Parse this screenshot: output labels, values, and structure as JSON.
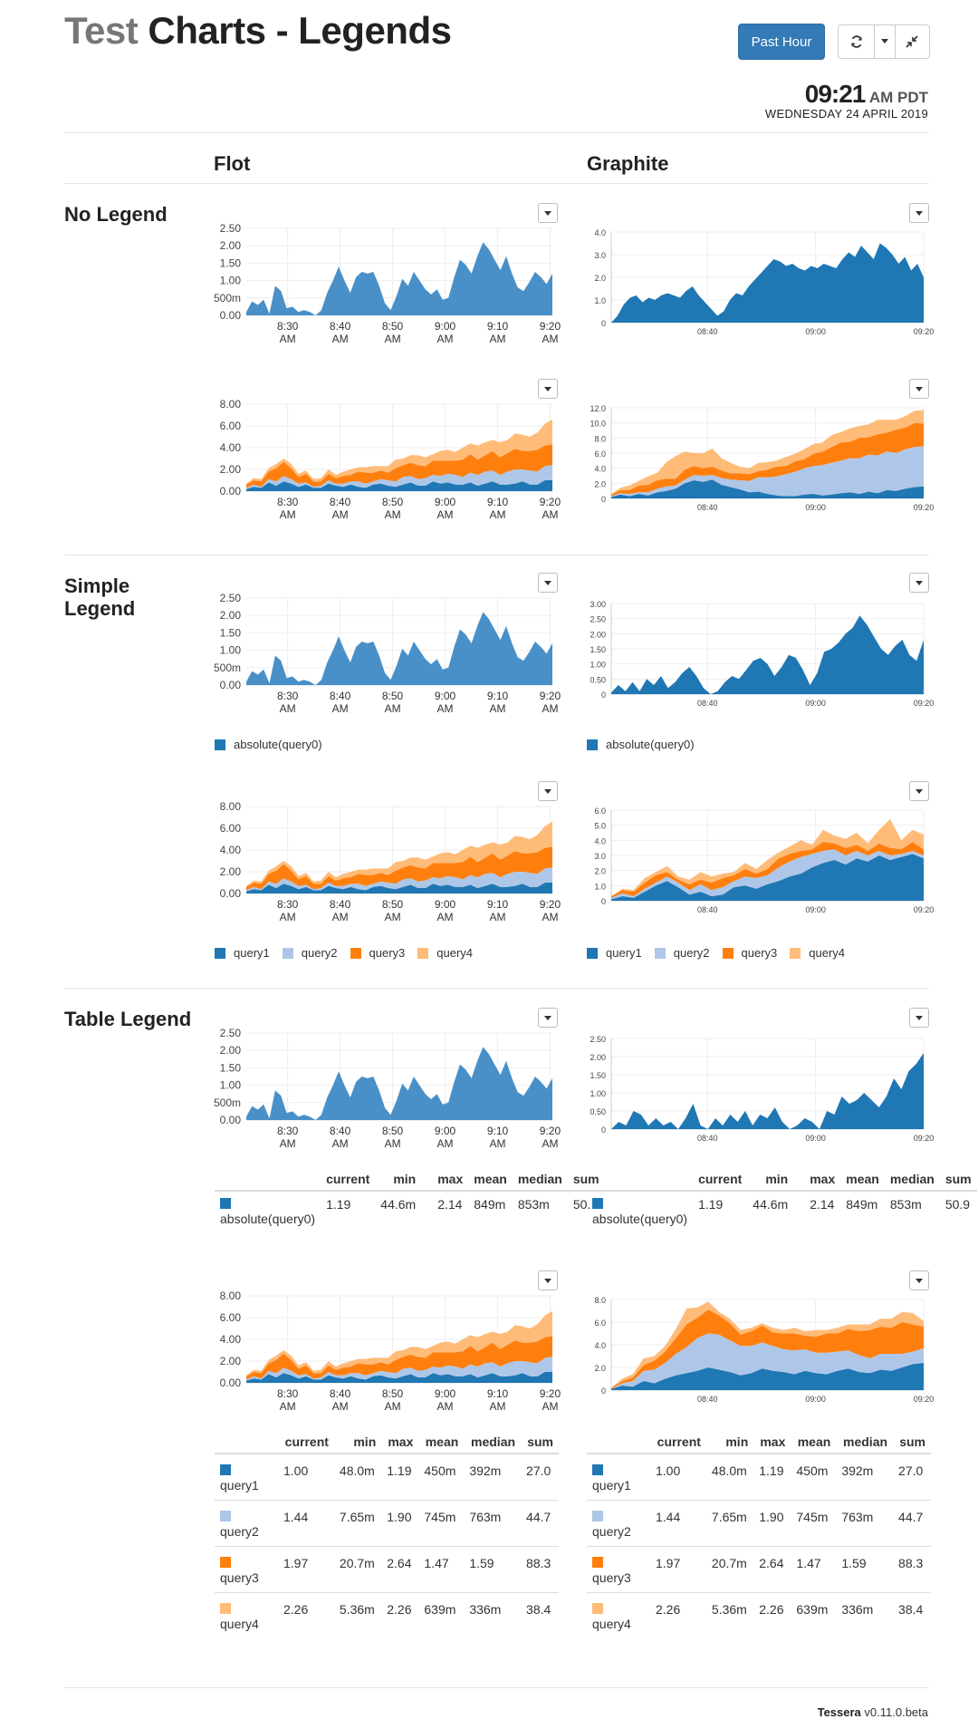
{
  "header": {
    "title_part1": "Test",
    "title_part2": "Charts - Legends",
    "time_range_button": "Past Hour",
    "refresh_icon": "refresh-icon",
    "caret_icon": "caret-down-icon",
    "exit_fullscreen_icon": "compress-icon",
    "time": "09:21",
    "ampm": "AM PDT",
    "date": "WEDNESDAY 24 APRIL 2019"
  },
  "columns": {
    "flot": "Flot",
    "graphite": "Graphite"
  },
  "sections": {
    "no_legend": "No Legend",
    "simple_legend_l1": "Simple",
    "simple_legend_l2": "Legend",
    "table_legend": "Table Legend"
  },
  "colors": {
    "flot_single": "#4a90c8",
    "query1": "#1f77b4",
    "query2": "#aec7e8",
    "query3": "#ff7f0e",
    "query4": "#ffbb78"
  },
  "flot_axis": {
    "x_ticks": [
      {
        "t": "8:30",
        "s": "AM"
      },
      {
        "t": "8:40",
        "s": "AM"
      },
      {
        "t": "8:50",
        "s": "AM"
      },
      {
        "t": "9:00",
        "s": "AM"
      },
      {
        "t": "9:10",
        "s": "AM"
      },
      {
        "t": "9:20",
        "s": "AM"
      }
    ],
    "y_single": [
      "0.00",
      "500m",
      "1.00",
      "1.50",
      "2.00",
      "2.50"
    ],
    "y_stack": [
      "0.00",
      "2.00",
      "4.00",
      "6.00",
      "8.00"
    ]
  },
  "graphite_axis": {
    "x_ticks": [
      "08:40",
      "09:00",
      "09:20"
    ]
  },
  "chart_data": [
    {
      "id": "flot-single",
      "type": "area",
      "series": [
        {
          "name": "absolute(query0)",
          "values": [
            0.1,
            0.4,
            0.3,
            0.45,
            0.05,
            0.85,
            0.7,
            0.2,
            0.25,
            0.1,
            0.15,
            0.1,
            0.0,
            0.15,
            0.65,
            1.0,
            1.4,
            1.0,
            0.65,
            1.1,
            1.25,
            1.2,
            1.25,
            0.85,
            0.35,
            0.15,
            0.55,
            1.05,
            0.85,
            1.25,
            1.0,
            0.75,
            0.6,
            0.75,
            0.45,
            0.5,
            1.1,
            1.6,
            1.45,
            1.2,
            1.7,
            2.1,
            1.9,
            1.6,
            1.3,
            1.7,
            1.2,
            0.8,
            0.7,
            0.95,
            1.25,
            1.1,
            0.9,
            1.2
          ]
        }
      ]
    },
    {
      "id": "flot-stack",
      "type": "area",
      "series": [
        {
          "name": "query1",
          "values": [
            0.2,
            0.4,
            0.3,
            0.8,
            0.5,
            0.9,
            0.7,
            0.4,
            0.6,
            0.3,
            0.3,
            0.7,
            0.5,
            0.4,
            0.6,
            0.4,
            0.3,
            0.6,
            0.7,
            0.5,
            0.4,
            0.6,
            0.8,
            0.5,
            0.5,
            0.9,
            0.7,
            0.8,
            0.6,
            0.6,
            0.8,
            0.5,
            0.7,
            0.9,
            0.6,
            0.6,
            0.7,
            0.9,
            0.6,
            0.6,
            1.0,
            1.0
          ]
        },
        {
          "name": "query2",
          "values": [
            0.1,
            0.2,
            0.1,
            0.3,
            0.4,
            0.5,
            0.4,
            0.3,
            0.2,
            0.1,
            0.2,
            0.3,
            0.2,
            0.3,
            0.3,
            0.5,
            0.4,
            0.3,
            0.4,
            0.5,
            0.5,
            0.7,
            0.6,
            0.6,
            0.7,
            0.6,
            0.7,
            0.8,
            0.9,
            0.7,
            0.9,
            1.0,
            1.1,
            1.0,
            0.9,
            1.2,
            1.3,
            1.1,
            1.3,
            1.2,
            1.3,
            1.4
          ]
        },
        {
          "name": "query3",
          "values": [
            0.3,
            0.4,
            0.5,
            0.7,
            1.2,
            1.3,
            1.0,
            0.6,
            0.8,
            0.5,
            0.4,
            0.6,
            0.5,
            0.7,
            0.6,
            0.9,
            1.0,
            0.8,
            0.8,
            0.7,
            1.2,
            1.1,
            1.2,
            1.3,
            1.1,
            1.3,
            1.4,
            1.2,
            1.3,
            1.6,
            1.7,
            1.4,
            1.5,
            1.8,
            1.6,
            1.7,
            1.9,
            1.7,
            1.8,
            2.0,
            1.9,
            1.9
          ]
        },
        {
          "name": "query4",
          "values": [
            0.1,
            0.2,
            0.2,
            0.3,
            0.4,
            0.3,
            0.4,
            0.3,
            0.3,
            0.2,
            0.3,
            0.4,
            0.3,
            0.4,
            0.5,
            0.4,
            0.5,
            0.6,
            0.4,
            0.6,
            0.8,
            0.6,
            0.7,
            0.9,
            0.8,
            0.6,
            0.9,
            1.0,
            0.8,
            1.1,
            1.0,
            1.3,
            1.2,
            1.0,
            1.4,
            1.2,
            1.4,
            1.5,
            1.3,
            1.6,
            2.0,
            2.3
          ]
        }
      ]
    },
    {
      "id": "graphite-nolegend-single",
      "type": "area",
      "ylim": [
        0,
        4
      ],
      "series": [
        {
          "name": "absolute(query0)",
          "values": [
            0.0,
            0.3,
            0.8,
            1.1,
            1.2,
            0.9,
            1.1,
            1.0,
            1.2,
            1.3,
            1.2,
            1.1,
            1.4,
            1.6,
            1.2,
            0.9,
            0.6,
            0.3,
            0.5,
            1.0,
            1.3,
            1.2,
            1.6,
            1.9,
            2.2,
            2.5,
            2.8,
            2.7,
            2.5,
            2.6,
            2.4,
            2.3,
            2.5,
            2.4,
            2.6,
            2.5,
            2.4,
            2.8,
            3.1,
            2.9,
            3.4,
            3.1,
            2.8,
            3.5,
            3.3,
            3.0,
            2.6,
            2.9,
            2.3,
            2.6,
            2.0
          ]
        }
      ]
    },
    {
      "id": "graphite-nolegend-stack",
      "type": "area",
      "ylim": [
        0,
        12
      ],
      "series": [
        {
          "name": "query1",
          "values": [
            0.2,
            0.5,
            0.3,
            0.6,
            0.4,
            0.8,
            1.0,
            1.3,
            2.0,
            2.4,
            2.2,
            2.5,
            1.8,
            1.5,
            1.2,
            0.8,
            0.9,
            0.6,
            0.4,
            0.3,
            0.3,
            0.5,
            0.6,
            0.4,
            0.5,
            0.7,
            0.8,
            0.6,
            0.9,
            0.7,
            1.1,
            1.0,
            1.3,
            1.5,
            1.6
          ]
        },
        {
          "name": "query2",
          "values": [
            0.1,
            0.2,
            0.3,
            0.2,
            0.4,
            0.5,
            0.6,
            0.4,
            0.5,
            0.7,
            0.8,
            0.6,
            0.9,
            1.0,
            1.2,
            1.5,
            1.9,
            2.2,
            2.5,
            2.9,
            3.2,
            3.5,
            3.7,
            4.0,
            4.2,
            4.3,
            4.5,
            4.7,
            4.9,
            5.0,
            5.1,
            5.0,
            5.2,
            5.3,
            5.3
          ]
        },
        {
          "name": "query3",
          "values": [
            0.2,
            0.4,
            0.5,
            0.9,
            1.0,
            1.1,
            1.0,
            0.9,
            1.3,
            1.2,
            1.0,
            1.1,
            1.0,
            0.8,
            0.9,
            0.9,
            0.8,
            1.0,
            1.3,
            1.1,
            1.4,
            1.2,
            1.6,
            1.8,
            2.1,
            2.4,
            2.2,
            2.7,
            2.3,
            2.8,
            2.5,
            3.1,
            2.9,
            3.2,
            3.0
          ]
        },
        {
          "name": "query4",
          "values": [
            0.1,
            0.3,
            0.6,
            0.6,
            1.1,
            1.0,
            2.2,
            3.0,
            2.4,
            1.7,
            2.0,
            2.4,
            1.6,
            1.4,
            0.9,
            0.8,
            1.1,
            1.0,
            0.8,
            1.2,
            1.0,
            1.3,
            1.3,
            1.2,
            1.6,
            1.4,
            1.8,
            1.6,
            1.7,
            1.9,
            1.7,
            1.3,
            1.5,
            1.6,
            1.8
          ]
        }
      ]
    },
    {
      "id": "graphite-simple-single",
      "type": "area",
      "ylim": [
        0,
        3
      ],
      "series": [
        {
          "name": "absolute(query0)",
          "values": [
            0.05,
            0.3,
            0.1,
            0.4,
            0.1,
            0.5,
            0.3,
            0.6,
            0.2,
            0.4,
            0.7,
            0.9,
            0.6,
            0.2,
            0.0,
            0.1,
            0.4,
            0.6,
            0.5,
            0.8,
            1.1,
            1.2,
            1.0,
            0.6,
            0.9,
            1.3,
            1.2,
            0.8,
            0.3,
            0.7,
            1.4,
            1.5,
            1.7,
            2.0,
            2.2,
            2.6,
            2.3,
            1.9,
            1.5,
            1.3,
            1.6,
            1.8,
            1.3,
            1.1,
            1.8
          ]
        }
      ]
    },
    {
      "id": "graphite-simple-stack",
      "type": "area",
      "ylim": [
        0,
        6
      ],
      "series": [
        {
          "name": "query1",
          "values": [
            0.1,
            0.3,
            0.2,
            0.6,
            1.0,
            1.3,
            0.9,
            0.4,
            0.6,
            0.3,
            0.4,
            0.9,
            1.0,
            0.8,
            1.1,
            1.3,
            1.6,
            1.8,
            2.2,
            2.5,
            2.7,
            2.4,
            2.8,
            2.6,
            3.0,
            2.7,
            2.9,
            3.1,
            2.8
          ]
        },
        {
          "name": "query2",
          "values": [
            0.1,
            0.2,
            0.1,
            0.2,
            0.2,
            0.3,
            0.3,
            0.3,
            0.5,
            0.4,
            0.5,
            0.4,
            0.6,
            0.7,
            0.6,
            0.9,
            1.0,
            1.1,
            0.9,
            0.8,
            0.7,
            0.6,
            0.5,
            0.4,
            0.3,
            0.3,
            0.2,
            0.2,
            0.2
          ]
        },
        {
          "name": "query3",
          "values": [
            0.1,
            0.2,
            0.3,
            0.4,
            0.5,
            0.3,
            0.2,
            0.4,
            0.3,
            0.5,
            0.6,
            0.4,
            0.5,
            0.3,
            0.4,
            0.6,
            0.5,
            0.4,
            0.3,
            0.6,
            0.4,
            0.5,
            0.4,
            0.3,
            0.5,
            0.5,
            0.3,
            0.6,
            0.4
          ]
        },
        {
          "name": "query4",
          "values": [
            0.0,
            0.1,
            0.1,
            0.3,
            0.2,
            0.4,
            0.2,
            0.3,
            0.5,
            0.4,
            0.3,
            0.2,
            0.4,
            0.3,
            0.6,
            0.4,
            0.5,
            0.7,
            0.3,
            0.8,
            0.5,
            0.6,
            0.8,
            0.5,
            0.9,
            1.9,
            0.6,
            0.8,
            1.0
          ]
        }
      ]
    },
    {
      "id": "graphite-table-single",
      "type": "area",
      "ylim": [
        0,
        2.5
      ],
      "series": [
        {
          "name": "absolute(query0)",
          "values": [
            0.0,
            0.2,
            0.1,
            0.5,
            0.4,
            0.1,
            0.3,
            0.1,
            0.2,
            0.0,
            0.3,
            0.7,
            0.1,
            0.0,
            0.3,
            0.1,
            0.4,
            0.2,
            0.5,
            0.1,
            0.4,
            0.3,
            0.6,
            0.2,
            0.0,
            0.1,
            0.3,
            0.2,
            0.0,
            0.5,
            0.4,
            0.9,
            0.7,
            0.8,
            1.0,
            0.8,
            0.6,
            0.9,
            1.4,
            1.1,
            1.6,
            1.8,
            2.1
          ]
        }
      ]
    },
    {
      "id": "graphite-table-stack",
      "type": "area",
      "ylim": [
        0,
        8
      ],
      "series": [
        {
          "name": "query1",
          "values": [
            0.1,
            0.4,
            0.3,
            0.8,
            0.6,
            1.0,
            1.3,
            1.5,
            1.7,
            2.0,
            1.8,
            1.6,
            1.3,
            1.5,
            1.9,
            1.7,
            1.6,
            1.4,
            1.7,
            1.5,
            1.4,
            1.7,
            1.9,
            1.6,
            1.5,
            1.8,
            1.7,
            2.0,
            2.3,
            2.4
          ]
        },
        {
          "name": "query2",
          "values": [
            0.0,
            0.2,
            0.5,
            0.9,
            1.2,
            1.4,
            1.9,
            2.3,
            2.9,
            3.0,
            3.1,
            2.8,
            2.6,
            2.4,
            2.3,
            2.2,
            2.0,
            2.1,
            1.9,
            1.8,
            1.9,
            1.7,
            1.6,
            1.5,
            1.3,
            1.4,
            1.5,
            1.2,
            1.1,
            1.3
          ]
        },
        {
          "name": "query3",
          "values": [
            0.1,
            0.2,
            0.3,
            0.5,
            0.8,
            1.0,
            1.4,
            2.0,
            1.8,
            2.1,
            1.7,
            1.5,
            1.0,
            1.3,
            1.5,
            1.2,
            1.4,
            1.5,
            1.2,
            1.4,
            1.7,
            1.6,
            1.9,
            2.1,
            2.5,
            2.4,
            2.3,
            2.8,
            2.4,
            1.9
          ]
        },
        {
          "name": "query4",
          "values": [
            0.0,
            0.2,
            0.3,
            0.6,
            0.4,
            0.5,
            0.8,
            1.4,
            0.9,
            0.7,
            0.3,
            0.4,
            0.4,
            0.3,
            0.2,
            0.4,
            0.3,
            0.5,
            0.4,
            0.6,
            0.3,
            0.5,
            0.4,
            0.6,
            0.5,
            0.7,
            0.8,
            0.9,
            1.0,
            0.5
          ]
        }
      ]
    }
  ],
  "simple_legend_single": [
    "absolute(query0)"
  ],
  "simple_legend_stack": [
    "query1",
    "query2",
    "query3",
    "query4"
  ],
  "table_headers": [
    "current",
    "min",
    "max",
    "mean",
    "median",
    "sum"
  ],
  "table_single": [
    {
      "name": "absolute(query0)",
      "current": "1.19",
      "min": "44.6m",
      "max": "2.14",
      "mean": "849m",
      "median": "853m",
      "sum_flot": "50.",
      "sum_graphite": "50.9"
    }
  ],
  "table_stack": [
    {
      "name": "query1",
      "current": "1.00",
      "min": "48.0m",
      "max": "1.19",
      "mean": "450m",
      "median": "392m",
      "sum": "27.0"
    },
    {
      "name": "query2",
      "current": "1.44",
      "min": "7.65m",
      "max": "1.90",
      "mean": "745m",
      "median": "763m",
      "sum": "44.7"
    },
    {
      "name": "query3",
      "current": "1.97",
      "min": "20.7m",
      "max": "2.64",
      "mean": "1.47",
      "median": "1.59",
      "sum": "88.3"
    },
    {
      "name": "query4",
      "current": "2.26",
      "min": "5.36m",
      "max": "2.26",
      "mean": "639m",
      "median": "336m",
      "sum": "38.4"
    }
  ],
  "footer": {
    "brand": "Tessera",
    "version": "v0.11.0.beta"
  }
}
